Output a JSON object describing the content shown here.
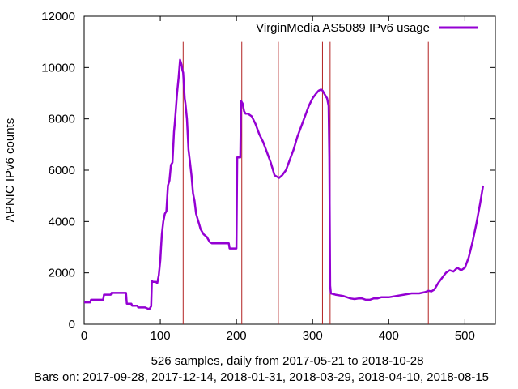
{
  "chart_data": {
    "type": "line",
    "title": "",
    "xlabel": "526 samples, daily from 2017-05-21 to 2018-10-28",
    "xlabel2": "Bars on:  2017-09-28, 2017-12-14, 2018-01-31, 2018-03-29, 2018-04-10, 2018-08-15",
    "ylabel": "APNIC IPv6 counts",
    "xlim": [
      0,
      540
    ],
    "ylim": [
      0,
      12000
    ],
    "xticks": [
      0,
      100,
      200,
      300,
      400,
      500
    ],
    "yticks": [
      0,
      2000,
      4000,
      6000,
      8000,
      10000,
      12000
    ],
    "grid": false,
    "legend_position": "top-right",
    "bars_x": [
      130,
      207,
      255,
      313,
      323,
      452
    ],
    "bar_color": "#b22222",
    "series": [
      {
        "name": "VirginMedia AS5089 IPv6 usage",
        "color": "#9400d3",
        "x": [
          0,
          8,
          9,
          25,
          26,
          35,
          36,
          55,
          56,
          62,
          63,
          70,
          71,
          80,
          84,
          86,
          88,
          89,
          90,
          94,
          96,
          98,
          100,
          101,
          102,
          104,
          106,
          108,
          110,
          112,
          114,
          116,
          118,
          119,
          120,
          122,
          124,
          126,
          128,
          129,
          130,
          132,
          133,
          135,
          137,
          139,
          141,
          143,
          145,
          147,
          149,
          151,
          153,
          155,
          157,
          159,
          161,
          163,
          165,
          168,
          172,
          176,
          190,
          191,
          196,
          200,
          201,
          205,
          206,
          208,
          210,
          212,
          215,
          220,
          225,
          230,
          235,
          240,
          245,
          250,
          253,
          256,
          260,
          265,
          270,
          275,
          280,
          285,
          290,
          295,
          300,
          305,
          308,
          311,
          313,
          316,
          319,
          321,
          322,
          323,
          324,
          330,
          340,
          350,
          355,
          360,
          365,
          370,
          375,
          380,
          385,
          390,
          400,
          410,
          420,
          430,
          440,
          448,
          452,
          456,
          460,
          465,
          470,
          475,
          480,
          485,
          490,
          495,
          500,
          505,
          510,
          515,
          520,
          524
        ],
        "y": [
          850,
          850,
          950,
          950,
          1150,
          1150,
          1220,
          1220,
          800,
          800,
          720,
          720,
          650,
          650,
          600,
          600,
          700,
          1700,
          1650,
          1650,
          1600,
          1900,
          2500,
          3000,
          3500,
          4000,
          4300,
          4400,
          5400,
          5600,
          6200,
          6300,
          7500,
          7800,
          8200,
          9000,
          9600,
          10300,
          10100,
          9900,
          9800,
          8800,
          8600,
          8000,
          6800,
          6300,
          5800,
          5100,
          4800,
          4300,
          4100,
          3900,
          3700,
          3600,
          3500,
          3450,
          3400,
          3300,
          3200,
          3150,
          3150,
          3150,
          3150,
          2950,
          2950,
          2950,
          6500,
          6500,
          8700,
          8600,
          8300,
          8200,
          8200,
          8100,
          7800,
          7400,
          7100,
          6700,
          6300,
          5800,
          5750,
          5700,
          5800,
          6000,
          6400,
          6800,
          7300,
          7700,
          8100,
          8500,
          8800,
          9000,
          9100,
          9150,
          9100,
          8950,
          8800,
          8500,
          6500,
          1500,
          1200,
          1150,
          1100,
          1000,
          980,
          1000,
          1000,
          950,
          950,
          1000,
          1000,
          1050,
          1050,
          1100,
          1150,
          1200,
          1200,
          1250,
          1300,
          1280,
          1350,
          1600,
          1800,
          2000,
          2100,
          2050,
          2200,
          2100,
          2200,
          2600,
          3200,
          3900,
          4700,
          5400
        ]
      }
    ]
  }
}
